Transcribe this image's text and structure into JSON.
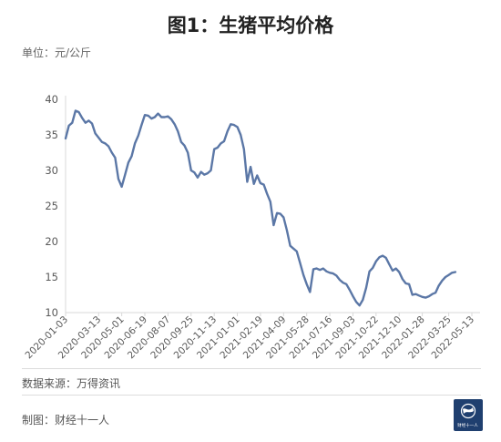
{
  "title": "图1：生猪平均价格",
  "unit_label": "单位：元/公斤",
  "source_label": "数据来源：万得资讯",
  "maker_label": "制图：财经十一人",
  "logo_text": "财经十一人",
  "colors": {
    "line": "#5b77a6",
    "axis": "#d9d9d9",
    "text": "#595959"
  },
  "chart_data": {
    "type": "line",
    "title": "图1：生猪平均价格",
    "xlabel": "",
    "ylabel": "",
    "ylim": [
      10,
      40
    ],
    "yticks": [
      10,
      15,
      20,
      25,
      30,
      35,
      40
    ],
    "grid": false,
    "xticks": [
      "2020-01-03",
      "2020-03-13",
      "2020-05-01",
      "2020-06-19",
      "2020-08-07",
      "2020-09-25",
      "2020-11-13",
      "2021-01-01",
      "2021-02-19",
      "2021-04-09",
      "2021-05-28",
      "2021-07-16",
      "2021-09-03",
      "2021-10-22",
      "2021-12-10",
      "2022-01-28",
      "2022-03-25",
      "2022-05-13"
    ],
    "series": [
      {
        "values": [
          [
            "2020-01-03",
            34.5
          ],
          [
            "2020-01-10",
            36.3
          ],
          [
            "2020-01-17",
            36.7
          ],
          [
            "2020-01-24",
            38.4
          ],
          [
            "2020-01-31",
            38.2
          ],
          [
            "2020-02-07",
            37.4
          ],
          [
            "2020-02-14",
            36.7
          ],
          [
            "2020-02-21",
            37.0
          ],
          [
            "2020-02-28",
            36.6
          ],
          [
            "2020-03-06",
            35.2
          ],
          [
            "2020-03-13",
            34.6
          ],
          [
            "2020-03-20",
            34.0
          ],
          [
            "2020-03-27",
            33.8
          ],
          [
            "2020-04-03",
            33.4
          ],
          [
            "2020-04-10",
            32.5
          ],
          [
            "2020-04-17",
            31.8
          ],
          [
            "2020-04-24",
            28.8
          ],
          [
            "2020-05-01",
            27.7
          ],
          [
            "2020-05-08",
            29.4
          ],
          [
            "2020-05-15",
            31.1
          ],
          [
            "2020-05-22",
            32.0
          ],
          [
            "2020-05-29",
            33.8
          ],
          [
            "2020-06-05",
            34.9
          ],
          [
            "2020-06-12",
            36.4
          ],
          [
            "2020-06-19",
            37.8
          ],
          [
            "2020-06-26",
            37.7
          ],
          [
            "2020-07-03",
            37.3
          ],
          [
            "2020-07-10",
            37.5
          ],
          [
            "2020-07-17",
            38.0
          ],
          [
            "2020-07-24",
            37.5
          ],
          [
            "2020-07-31",
            37.5
          ],
          [
            "2020-08-07",
            37.6
          ],
          [
            "2020-08-14",
            37.2
          ],
          [
            "2020-08-21",
            36.5
          ],
          [
            "2020-08-28",
            35.5
          ],
          [
            "2020-09-04",
            34.0
          ],
          [
            "2020-09-11",
            33.5
          ],
          [
            "2020-09-18",
            32.5
          ],
          [
            "2020-09-25",
            30.0
          ],
          [
            "2020-10-02",
            29.7
          ],
          [
            "2020-10-09",
            29.0
          ],
          [
            "2020-10-16",
            29.8
          ],
          [
            "2020-10-23",
            29.4
          ],
          [
            "2020-10-30",
            29.6
          ],
          [
            "2020-11-06",
            30.0
          ],
          [
            "2020-11-13",
            33.0
          ],
          [
            "2020-11-20",
            33.2
          ],
          [
            "2020-11-27",
            33.8
          ],
          [
            "2020-12-04",
            34.1
          ],
          [
            "2020-12-11",
            35.5
          ],
          [
            "2020-12-18",
            36.5
          ],
          [
            "2020-12-25",
            36.4
          ],
          [
            "2021-01-01",
            36.1
          ],
          [
            "2021-01-08",
            35.0
          ],
          [
            "2021-01-15",
            33.0
          ],
          [
            "2021-01-22",
            28.4
          ],
          [
            "2021-01-29",
            30.5
          ],
          [
            "2021-02-05",
            28.1
          ],
          [
            "2021-02-12",
            29.3
          ],
          [
            "2021-02-19",
            28.2
          ],
          [
            "2021-02-26",
            28.0
          ],
          [
            "2021-03-05",
            26.7
          ],
          [
            "2021-03-12",
            25.6
          ],
          [
            "2021-03-19",
            22.3
          ],
          [
            "2021-03-26",
            24.0
          ],
          [
            "2021-04-02",
            23.9
          ],
          [
            "2021-04-09",
            23.4
          ],
          [
            "2021-04-16",
            21.6
          ],
          [
            "2021-04-23",
            19.4
          ],
          [
            "2021-04-30",
            19.0
          ],
          [
            "2021-05-07",
            18.6
          ],
          [
            "2021-05-14",
            17.0
          ],
          [
            "2021-05-21",
            15.3
          ],
          [
            "2021-05-28",
            14.0
          ],
          [
            "2021-06-04",
            12.9
          ],
          [
            "2021-06-11",
            16.1
          ],
          [
            "2021-06-18",
            16.2
          ],
          [
            "2021-06-25",
            16.0
          ],
          [
            "2021-07-02",
            16.2
          ],
          [
            "2021-07-09",
            15.8
          ],
          [
            "2021-07-16",
            15.6
          ],
          [
            "2021-07-23",
            15.5
          ],
          [
            "2021-07-30",
            15.2
          ],
          [
            "2021-08-06",
            14.6
          ],
          [
            "2021-08-13",
            14.2
          ],
          [
            "2021-08-20",
            14.0
          ],
          [
            "2021-08-27",
            13.2
          ],
          [
            "2021-09-03",
            12.3
          ],
          [
            "2021-09-10",
            11.5
          ],
          [
            "2021-09-17",
            11.0
          ],
          [
            "2021-09-24",
            11.8
          ],
          [
            "2021-10-01",
            13.5
          ],
          [
            "2021-10-08",
            15.8
          ],
          [
            "2021-10-15",
            16.3
          ],
          [
            "2021-10-22",
            17.2
          ],
          [
            "2021-10-29",
            17.8
          ],
          [
            "2021-11-05",
            18.0
          ],
          [
            "2021-11-12",
            17.7
          ],
          [
            "2021-11-19",
            16.8
          ],
          [
            "2021-11-26",
            15.9
          ],
          [
            "2021-12-03",
            16.2
          ],
          [
            "2021-12-10",
            15.7
          ],
          [
            "2021-12-17",
            14.7
          ],
          [
            "2021-12-24",
            14.1
          ],
          [
            "2021-12-31",
            14.0
          ],
          [
            "2022-01-07",
            12.5
          ],
          [
            "2022-01-14",
            12.6
          ],
          [
            "2022-01-21",
            12.4
          ],
          [
            "2022-01-28",
            12.2
          ],
          [
            "2022-02-04",
            12.1
          ],
          [
            "2022-02-11",
            12.3
          ],
          [
            "2022-02-18",
            12.6
          ],
          [
            "2022-02-25",
            12.8
          ],
          [
            "2022-03-04",
            13.8
          ],
          [
            "2022-03-11",
            14.5
          ],
          [
            "2022-03-18",
            15.0
          ],
          [
            "2022-03-25",
            15.3
          ],
          [
            "2022-04-01",
            15.6
          ],
          [
            "2022-04-08",
            15.7
          ]
        ]
      }
    ]
  }
}
